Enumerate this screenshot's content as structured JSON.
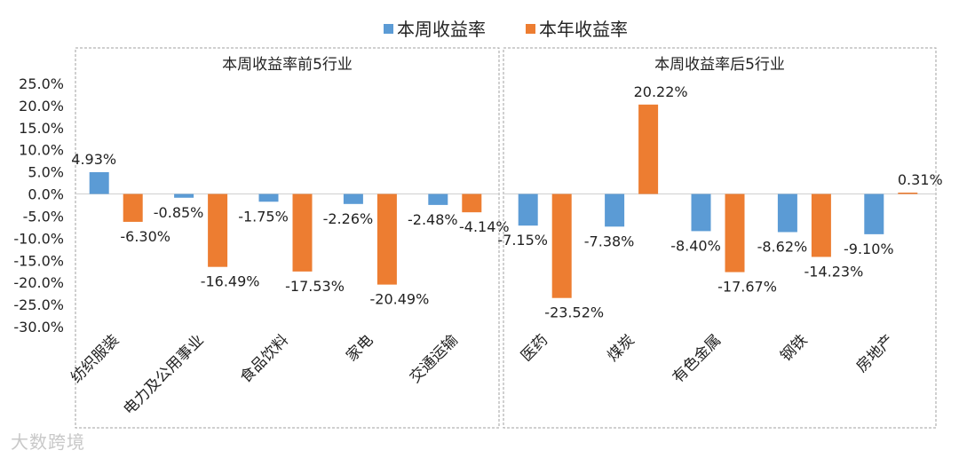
{
  "chart_data": {
    "type": "bar",
    "legend": [
      {
        "name": "本周收益率",
        "color": "#5B9BD5"
      },
      {
        "name": "本年收益率",
        "color": "#ED7D31"
      }
    ],
    "ylim": [
      -30,
      25
    ],
    "yticks": [
      "25.0%",
      "20.0%",
      "15.0%",
      "10.0%",
      "5.0%",
      "0.0%",
      "-5.0%",
      "-10.0%",
      "-15.0%",
      "-20.0%",
      "-25.0%",
      "-30.0%"
    ],
    "panels": [
      {
        "title": "本周收益率前5行业",
        "categories": [
          "纺织服装",
          "电力及公用事业",
          "食品饮料",
          "家电",
          "交通运输"
        ],
        "series": [
          {
            "name": "本周收益率",
            "values": [
              4.93,
              -0.85,
              -1.75,
              -2.26,
              -2.48
            ],
            "labels": [
              "4.93%",
              "-0.85%",
              "-1.75%",
              "-2.26%",
              "-2.48%"
            ]
          },
          {
            "name": "本年收益率",
            "values": [
              -6.3,
              -16.49,
              -17.53,
              -20.49,
              -4.14
            ],
            "labels": [
              "-6.30%",
              "-16.49%",
              "-17.53%",
              "-20.49%",
              "-4.14%"
            ]
          }
        ]
      },
      {
        "title": "本周收益率后5行业",
        "categories": [
          "医药",
          "煤炭",
          "有色金属",
          "钢铁",
          "房地产"
        ],
        "series": [
          {
            "name": "本周收益率",
            "values": [
              -7.15,
              -7.38,
              -8.4,
              -8.62,
              -9.1
            ],
            "labels": [
              "-7.15%",
              "-7.38%",
              "-8.40%",
              "-8.62%",
              "-9.10%"
            ]
          },
          {
            "name": "本年收益率",
            "values": [
              -23.52,
              20.22,
              -17.67,
              -14.23,
              0.31
            ],
            "labels": [
              "-23.52%",
              "20.22%",
              "-17.67%",
              "-14.23%",
              "0.31%"
            ]
          }
        ]
      }
    ]
  },
  "watermark": "大数跨境"
}
